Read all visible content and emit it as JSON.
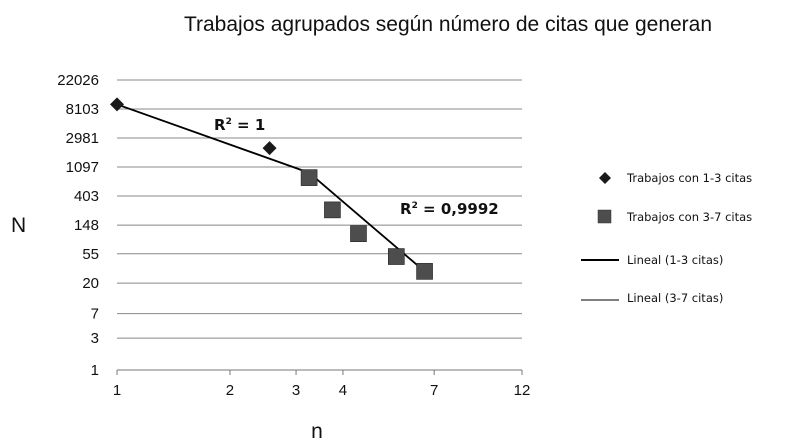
{
  "chart_data": {
    "type": "scatter",
    "title": "Trabajos agrupados según número de citas que generan",
    "xlabel": "n",
    "ylabel": "N",
    "x_scale": "log",
    "y_scale": "log",
    "x_ticks": [
      "1",
      "2",
      "3",
      "4",
      "7",
      "12"
    ],
    "y_ticks": [
      "1",
      "3",
      "7",
      "20",
      "55",
      "148",
      "403",
      "1097",
      "2981",
      "8103",
      "22026"
    ],
    "grid": "horizontal",
    "legend_position": "right",
    "series": [
      {
        "name": "Trabajos con 1-3 citas",
        "marker": "diamond",
        "color": "#1a1a1a",
        "points": [
          {
            "x": 1.0,
            "y": 9500
          },
          {
            "x": 2.55,
            "y": 2100
          }
        ]
      },
      {
        "name": "Trabajos con 3-7 citas",
        "marker": "square",
        "color": "#4d4d4d",
        "points": [
          {
            "x": 3.25,
            "y": 760
          },
          {
            "x": 3.75,
            "y": 250
          },
          {
            "x": 4.4,
            "y": 110
          },
          {
            "x": 5.55,
            "y": 50
          },
          {
            "x": 6.6,
            "y": 30
          }
        ]
      }
    ],
    "trendlines": [
      {
        "name": "Lineal (1-3 citas)",
        "color": "#000000",
        "from": {
          "x": 1.0,
          "y": 9500
        },
        "to": {
          "x": 3.25,
          "y": 900
        }
      },
      {
        "name": "Lineal (3-7 citas)",
        "color": "#000000",
        "from": {
          "x": 3.25,
          "y": 900
        },
        "to": {
          "x": 6.6,
          "y": 30
        }
      }
    ],
    "annotations": [
      "R² = 1",
      "R² = 0,9992"
    ]
  }
}
